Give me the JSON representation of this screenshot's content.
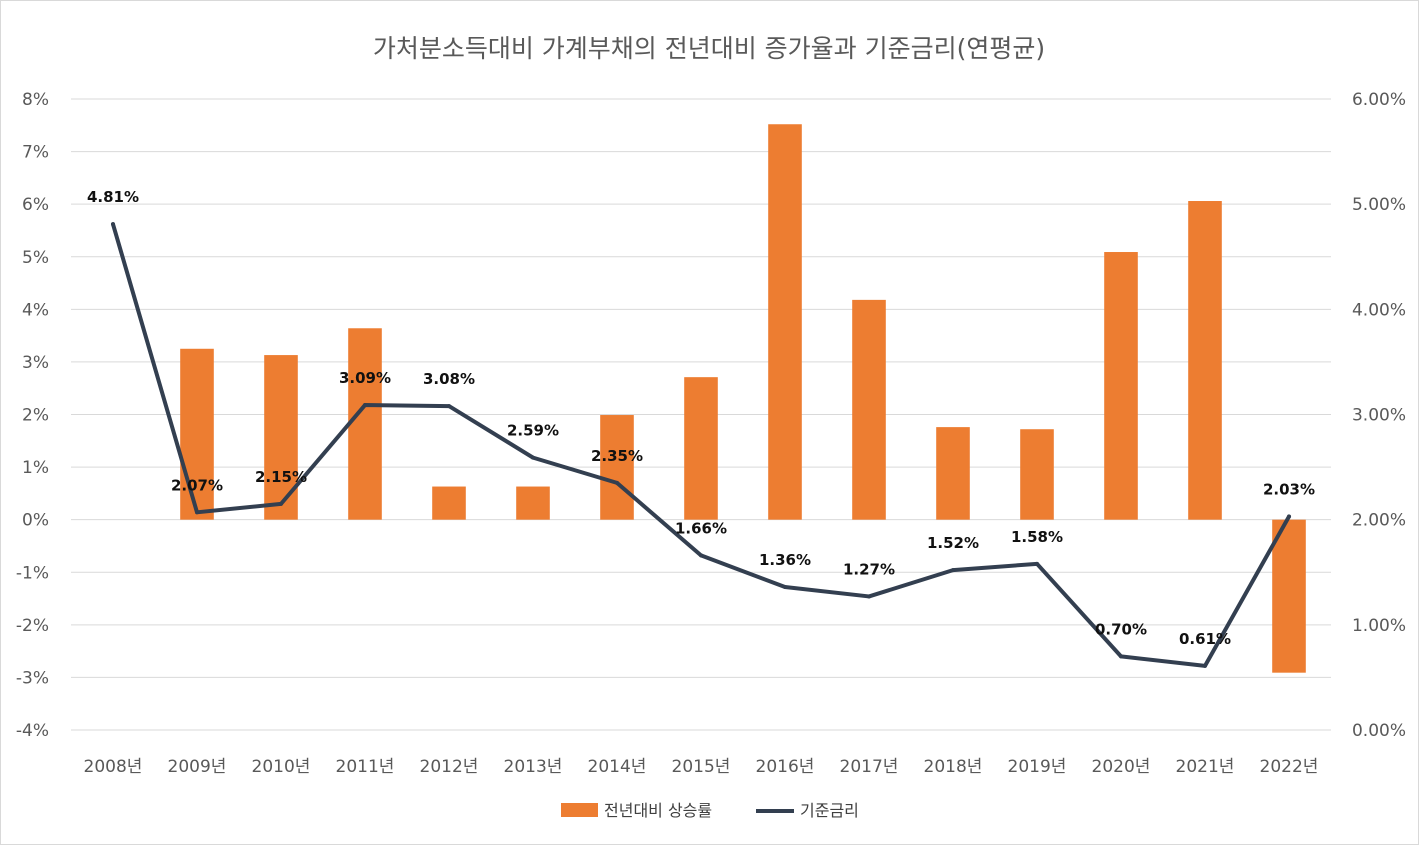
{
  "chart_data": {
    "type": "bar+line",
    "title": "가처분소득대비 가계부채의 전년대비 증가율과 기준금리(연평균)",
    "categories": [
      "2008년",
      "2009년",
      "2010년",
      "2011년",
      "2012년",
      "2013년",
      "2014년",
      "2015년",
      "2016년",
      "2017년",
      "2018년",
      "2019년",
      "2020년",
      "2021년",
      "2022년"
    ],
    "left_axis": {
      "min": -4,
      "max": 8,
      "step": 1,
      "ticks": [
        "-4%",
        "-3%",
        "-2%",
        "-1%",
        "0%",
        "1%",
        "2%",
        "3%",
        "4%",
        "5%",
        "6%",
        "7%",
        "8%"
      ]
    },
    "right_axis": {
      "min": 0,
      "max": 6,
      "step": 1,
      "ticks": [
        "0.00%",
        "1.00%",
        "2.00%",
        "3.00%",
        "4.00%",
        "5.00%",
        "6.00%"
      ]
    },
    "grid": true,
    "legend_position": "bottom",
    "series": [
      {
        "name": "전년대비 상승률",
        "type": "bar",
        "axis": "left",
        "color": "#ED7D31",
        "values": [
          null,
          3.25,
          3.13,
          3.64,
          0.63,
          0.63,
          1.99,
          2.71,
          7.52,
          4.18,
          1.76,
          1.72,
          5.09,
          6.06,
          -2.91
        ]
      },
      {
        "name": "기준금리",
        "type": "line",
        "axis": "right",
        "color": "#333F50",
        "values": [
          4.81,
          2.07,
          2.15,
          3.09,
          3.08,
          2.59,
          2.35,
          1.66,
          1.36,
          1.27,
          1.52,
          1.58,
          0.7,
          0.61,
          2.03
        ],
        "labels": [
          "4.81%",
          "2.07%",
          "2.15%",
          "3.09%",
          "3.08%",
          "2.59%",
          "2.35%",
          "1.66%",
          "1.36%",
          "1.27%",
          "1.52%",
          "1.58%",
          "0.70%",
          "0.61%",
          "2.03%"
        ]
      }
    ]
  }
}
